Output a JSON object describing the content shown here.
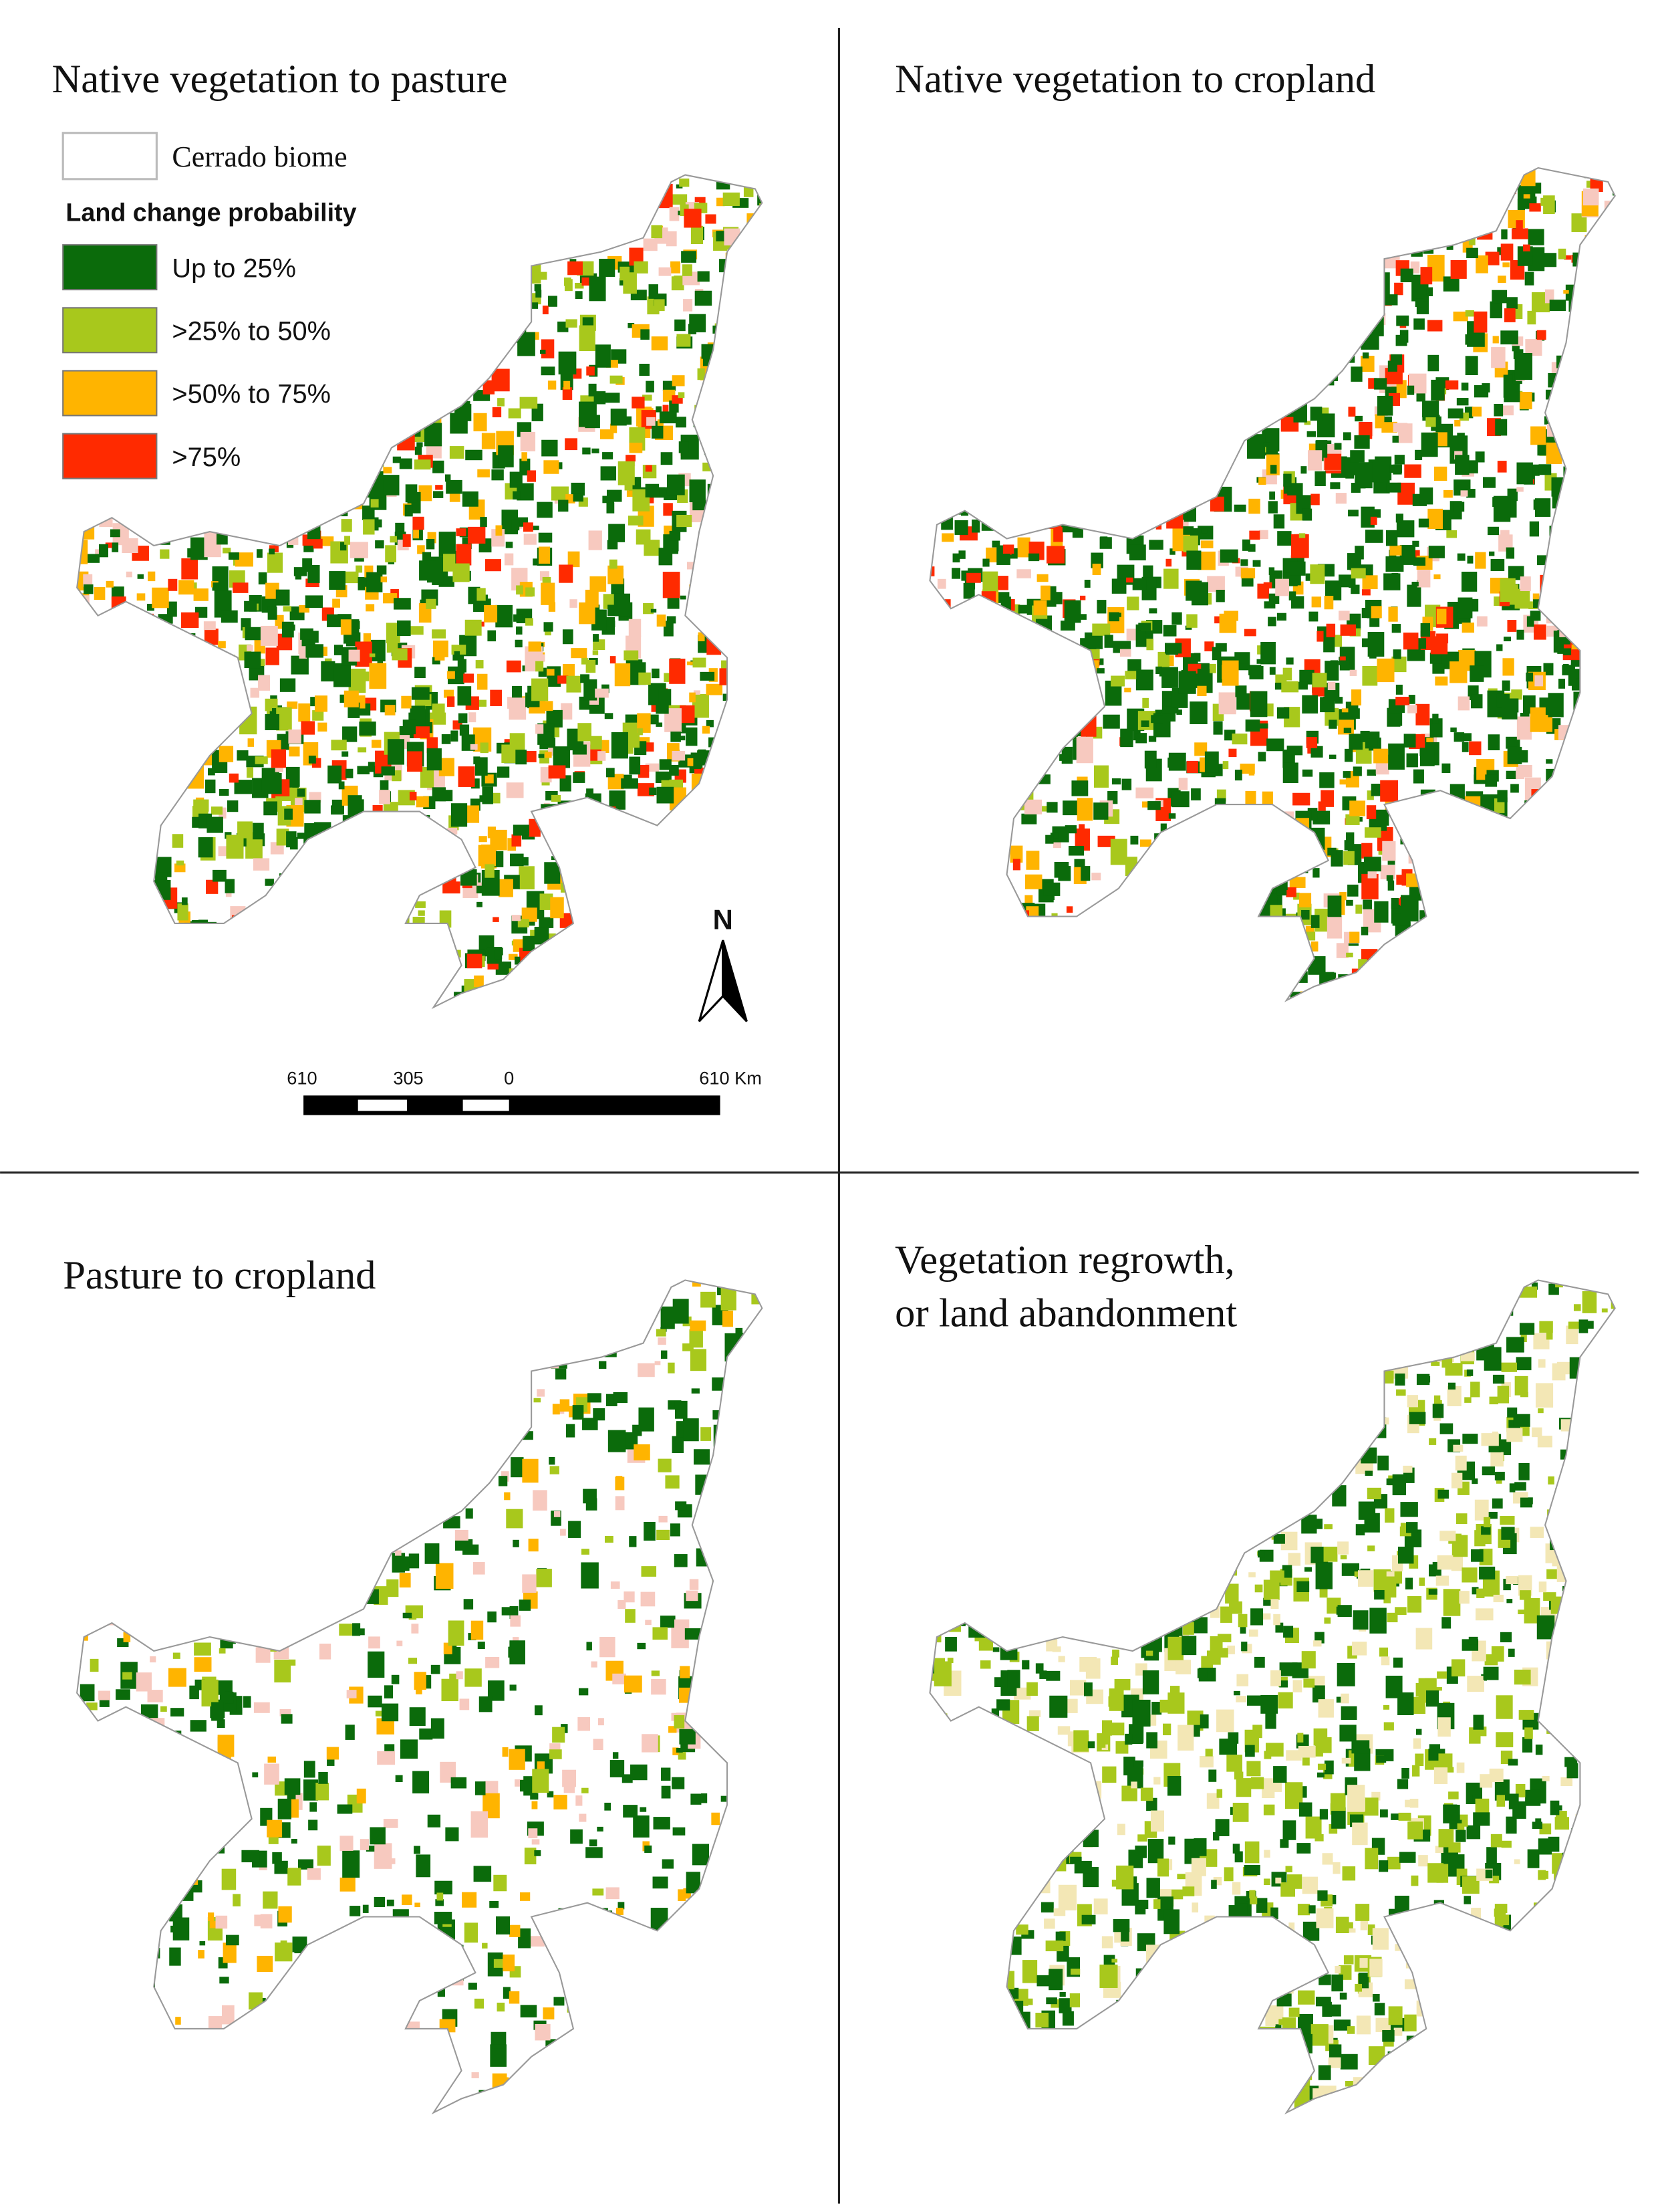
{
  "panels": [
    {
      "title_lines": [
        "Native vegetation to pasture"
      ]
    },
    {
      "title_lines": [
        "Native vegetation to cropland"
      ]
    },
    {
      "title_lines": [
        "Pasture to cropland"
      ]
    },
    {
      "title_lines": [
        "Vegetation regrowth,",
        "or land abandonment"
      ]
    }
  ],
  "legend": {
    "biome": "Cerrado biome",
    "title": "Land change probability",
    "classes": [
      {
        "label": "Up to 25%",
        "color": "#0b6b0b"
      },
      {
        "label": ">25% to 50%",
        "color": "#a8c81c"
      },
      {
        "label": ">50% to 75%",
        "color": "#ffb400"
      },
      {
        "label": ">75%",
        "color": "#ff2a00"
      }
    ]
  },
  "north": "N",
  "scale_bar": {
    "labels": [
      "610",
      "305",
      "0",
      "610 Km"
    ]
  }
}
